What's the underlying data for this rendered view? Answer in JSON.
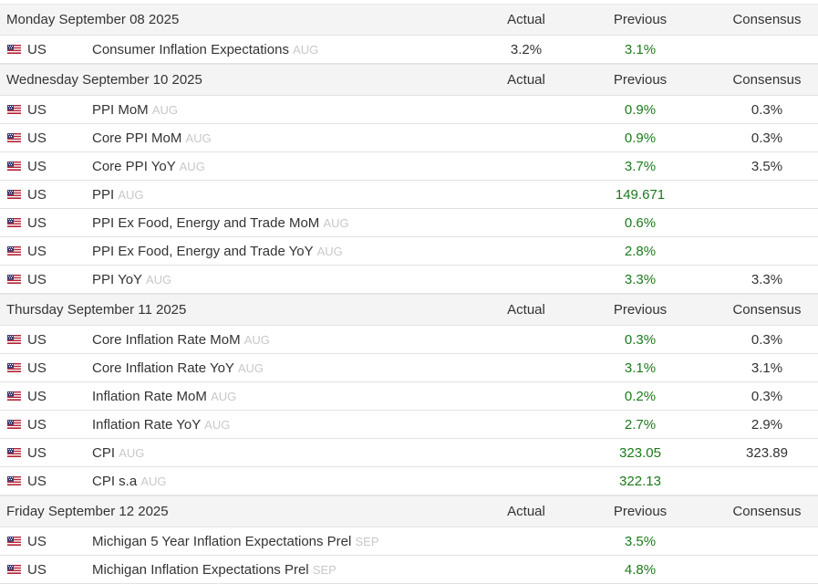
{
  "columns": {
    "actual": "Actual",
    "previous": "Previous",
    "consensus": "Consensus"
  },
  "colors": {
    "previous_value": "#1b7a1b",
    "period_label": "#c8c8c8",
    "header_bg": "#f4f4f4"
  },
  "days": [
    {
      "date": "Monday September 08 2025",
      "events": [
        {
          "country": "US",
          "flag": "us-flag-icon",
          "name": "Consumer Inflation Expectations",
          "period": "AUG",
          "actual": "3.2%",
          "previous": "3.1%",
          "consensus": ""
        }
      ]
    },
    {
      "date": "Wednesday September 10 2025",
      "events": [
        {
          "country": "US",
          "flag": "us-flag-icon",
          "name": "PPI MoM",
          "period": "AUG",
          "actual": "",
          "previous": "0.9%",
          "consensus": "0.3%"
        },
        {
          "country": "US",
          "flag": "us-flag-icon",
          "name": "Core PPI MoM",
          "period": "AUG",
          "actual": "",
          "previous": "0.9%",
          "consensus": "0.3%"
        },
        {
          "country": "US",
          "flag": "us-flag-icon",
          "name": "Core PPI YoY",
          "period": "AUG",
          "actual": "",
          "previous": "3.7%",
          "consensus": "3.5%"
        },
        {
          "country": "US",
          "flag": "us-flag-icon",
          "name": "PPI",
          "period": "AUG",
          "actual": "",
          "previous": "149.671",
          "consensus": ""
        },
        {
          "country": "US",
          "flag": "us-flag-icon",
          "name": "PPI Ex Food, Energy and Trade MoM",
          "period": "AUG",
          "actual": "",
          "previous": "0.6%",
          "consensus": ""
        },
        {
          "country": "US",
          "flag": "us-flag-icon",
          "name": "PPI Ex Food, Energy and Trade YoY",
          "period": "AUG",
          "actual": "",
          "previous": "2.8%",
          "consensus": ""
        },
        {
          "country": "US",
          "flag": "us-flag-icon",
          "name": "PPI YoY",
          "period": "AUG",
          "actual": "",
          "previous": "3.3%",
          "consensus": "3.3%"
        }
      ]
    },
    {
      "date": "Thursday September 11 2025",
      "events": [
        {
          "country": "US",
          "flag": "us-flag-icon",
          "name": "Core Inflation Rate MoM",
          "period": "AUG",
          "actual": "",
          "previous": "0.3%",
          "consensus": "0.3%"
        },
        {
          "country": "US",
          "flag": "us-flag-icon",
          "name": "Core Inflation Rate YoY",
          "period": "AUG",
          "actual": "",
          "previous": "3.1%",
          "consensus": "3.1%"
        },
        {
          "country": "US",
          "flag": "us-flag-icon",
          "name": "Inflation Rate MoM",
          "period": "AUG",
          "actual": "",
          "previous": "0.2%",
          "consensus": "0.3%"
        },
        {
          "country": "US",
          "flag": "us-flag-icon",
          "name": "Inflation Rate YoY",
          "period": "AUG",
          "actual": "",
          "previous": "2.7%",
          "consensus": "2.9%"
        },
        {
          "country": "US",
          "flag": "us-flag-icon",
          "name": "CPI",
          "period": "AUG",
          "actual": "",
          "previous": "323.05",
          "consensus": "323.89"
        },
        {
          "country": "US",
          "flag": "us-flag-icon",
          "name": "CPI s.a",
          "period": "AUG",
          "actual": "",
          "previous": "322.13",
          "consensus": ""
        }
      ]
    },
    {
      "date": "Friday September 12 2025",
      "events": [
        {
          "country": "US",
          "flag": "us-flag-icon",
          "name": "Michigan 5 Year Inflation Expectations Prel",
          "period": "SEP",
          "actual": "",
          "previous": "3.5%",
          "consensus": ""
        },
        {
          "country": "US",
          "flag": "us-flag-icon",
          "name": "Michigan Inflation Expectations Prel",
          "period": "SEP",
          "actual": "",
          "previous": "4.8%",
          "consensus": ""
        }
      ]
    }
  ]
}
